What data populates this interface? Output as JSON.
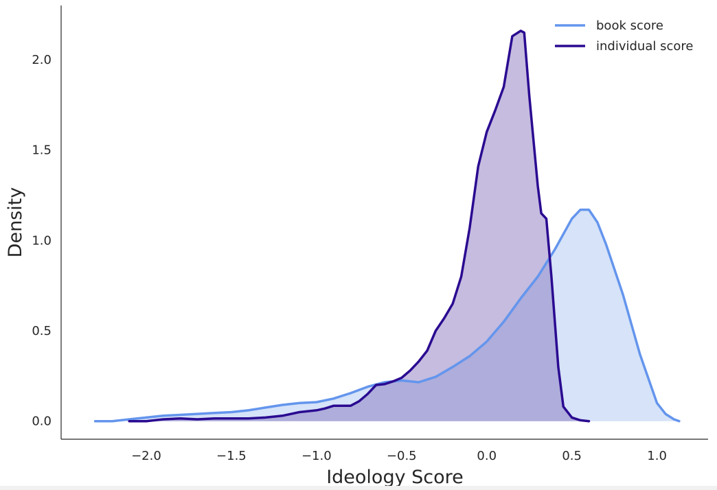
{
  "chart_data": {
    "type": "area",
    "title": "",
    "xlabel": "Ideology Score",
    "ylabel": "Density",
    "xlim": [
      -2.5,
      1.3
    ],
    "ylim": [
      -0.1,
      2.3
    ],
    "xticks": [
      -2.0,
      -1.5,
      -1.0,
      -0.5,
      0.0,
      0.5,
      1.0
    ],
    "xtick_labels": [
      "−2.0",
      "−1.5",
      "−1.0",
      "−0.5",
      "0.0",
      "0.5",
      "1.0"
    ],
    "yticks": [
      0.0,
      0.5,
      1.0,
      1.5,
      2.0
    ],
    "ytick_labels": [
      "0.0",
      "0.5",
      "1.0",
      "1.5",
      "2.0"
    ],
    "grid": false,
    "legend_position": "top-right",
    "series": [
      {
        "name": "book score",
        "color": "#6495ED",
        "fill": "#d6e3f8",
        "x": [
          -2.3,
          -2.2,
          -2.1,
          -2.0,
          -1.9,
          -1.8,
          -1.7,
          -1.6,
          -1.5,
          -1.4,
          -1.3,
          -1.2,
          -1.1,
          -1.0,
          -0.9,
          -0.8,
          -0.7,
          -0.6,
          -0.5,
          -0.4,
          -0.3,
          -0.2,
          -0.1,
          0.0,
          0.1,
          0.2,
          0.3,
          0.4,
          0.5,
          0.55,
          0.6,
          0.65,
          0.7,
          0.8,
          0.9,
          1.0,
          1.05,
          1.1,
          1.13
        ],
        "y": [
          0.0,
          0.0,
          0.01,
          0.02,
          0.03,
          0.035,
          0.04,
          0.045,
          0.05,
          0.06,
          0.075,
          0.09,
          0.1,
          0.105,
          0.125,
          0.155,
          0.19,
          0.215,
          0.225,
          0.215,
          0.245,
          0.3,
          0.36,
          0.44,
          0.55,
          0.68,
          0.8,
          0.95,
          1.12,
          1.17,
          1.17,
          1.1,
          0.98,
          0.7,
          0.37,
          0.1,
          0.04,
          0.01,
          0.0
        ]
      },
      {
        "name": "individual score",
        "color": "#2a0a91",
        "fill": "#7e6bb8",
        "x": [
          -2.1,
          -2.0,
          -1.9,
          -1.8,
          -1.7,
          -1.6,
          -1.5,
          -1.4,
          -1.3,
          -1.2,
          -1.1,
          -1.0,
          -0.95,
          -0.9,
          -0.85,
          -0.8,
          -0.75,
          -0.7,
          -0.65,
          -0.6,
          -0.55,
          -0.5,
          -0.45,
          -0.4,
          -0.35,
          -0.3,
          -0.25,
          -0.2,
          -0.15,
          -0.1,
          -0.05,
          0.0,
          0.05,
          0.1,
          0.15,
          0.2,
          0.22,
          0.25,
          0.3,
          0.32,
          0.35,
          0.38,
          0.42,
          0.45,
          0.5,
          0.55,
          0.6
        ],
        "y": [
          0.0,
          0.0,
          0.01,
          0.015,
          0.01,
          0.015,
          0.015,
          0.015,
          0.02,
          0.03,
          0.05,
          0.06,
          0.07,
          0.085,
          0.085,
          0.085,
          0.11,
          0.15,
          0.2,
          0.205,
          0.22,
          0.24,
          0.28,
          0.33,
          0.39,
          0.5,
          0.57,
          0.65,
          0.8,
          1.07,
          1.41,
          1.6,
          1.72,
          1.85,
          2.13,
          2.16,
          2.15,
          1.8,
          1.3,
          1.15,
          1.12,
          0.8,
          0.3,
          0.08,
          0.02,
          0.005,
          0.0
        ]
      }
    ]
  }
}
